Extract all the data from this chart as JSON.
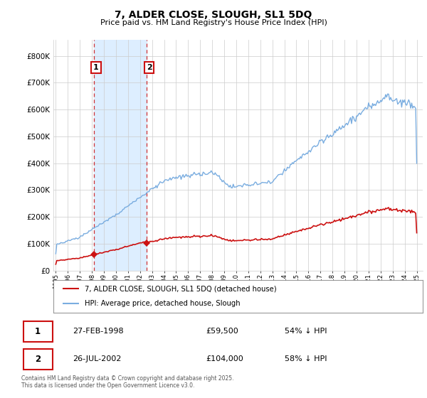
{
  "title": "7, ALDER CLOSE, SLOUGH, SL1 5DQ",
  "subtitle": "Price paid vs. HM Land Registry's House Price Index (HPI)",
  "ytick_vals": [
    0,
    100000,
    200000,
    300000,
    400000,
    500000,
    600000,
    700000,
    800000
  ],
  "ylim": [
    0,
    860000
  ],
  "xlim_start": 1994.8,
  "xlim_end": 2025.5,
  "hpi_color": "#7aade0",
  "property_color": "#cc1111",
  "transaction1": {
    "label": "1",
    "date": "27-FEB-1998",
    "price": 59500,
    "year": 1998.15,
    "pct": "54% ↓ HPI"
  },
  "transaction2": {
    "label": "2",
    "date": "26-JUL-2002",
    "price": 104000,
    "year": 2002.56,
    "pct": "58% ↓ HPI"
  },
  "legend_line1": "7, ALDER CLOSE, SLOUGH, SL1 5DQ (detached house)",
  "legend_line2": "HPI: Average price, detached house, Slough",
  "footer": "Contains HM Land Registry data © Crown copyright and database right 2025.\nThis data is licensed under the Open Government Licence v3.0.",
  "background_color": "#ffffff",
  "grid_color": "#cccccc",
  "span_color": "#ddeeff"
}
